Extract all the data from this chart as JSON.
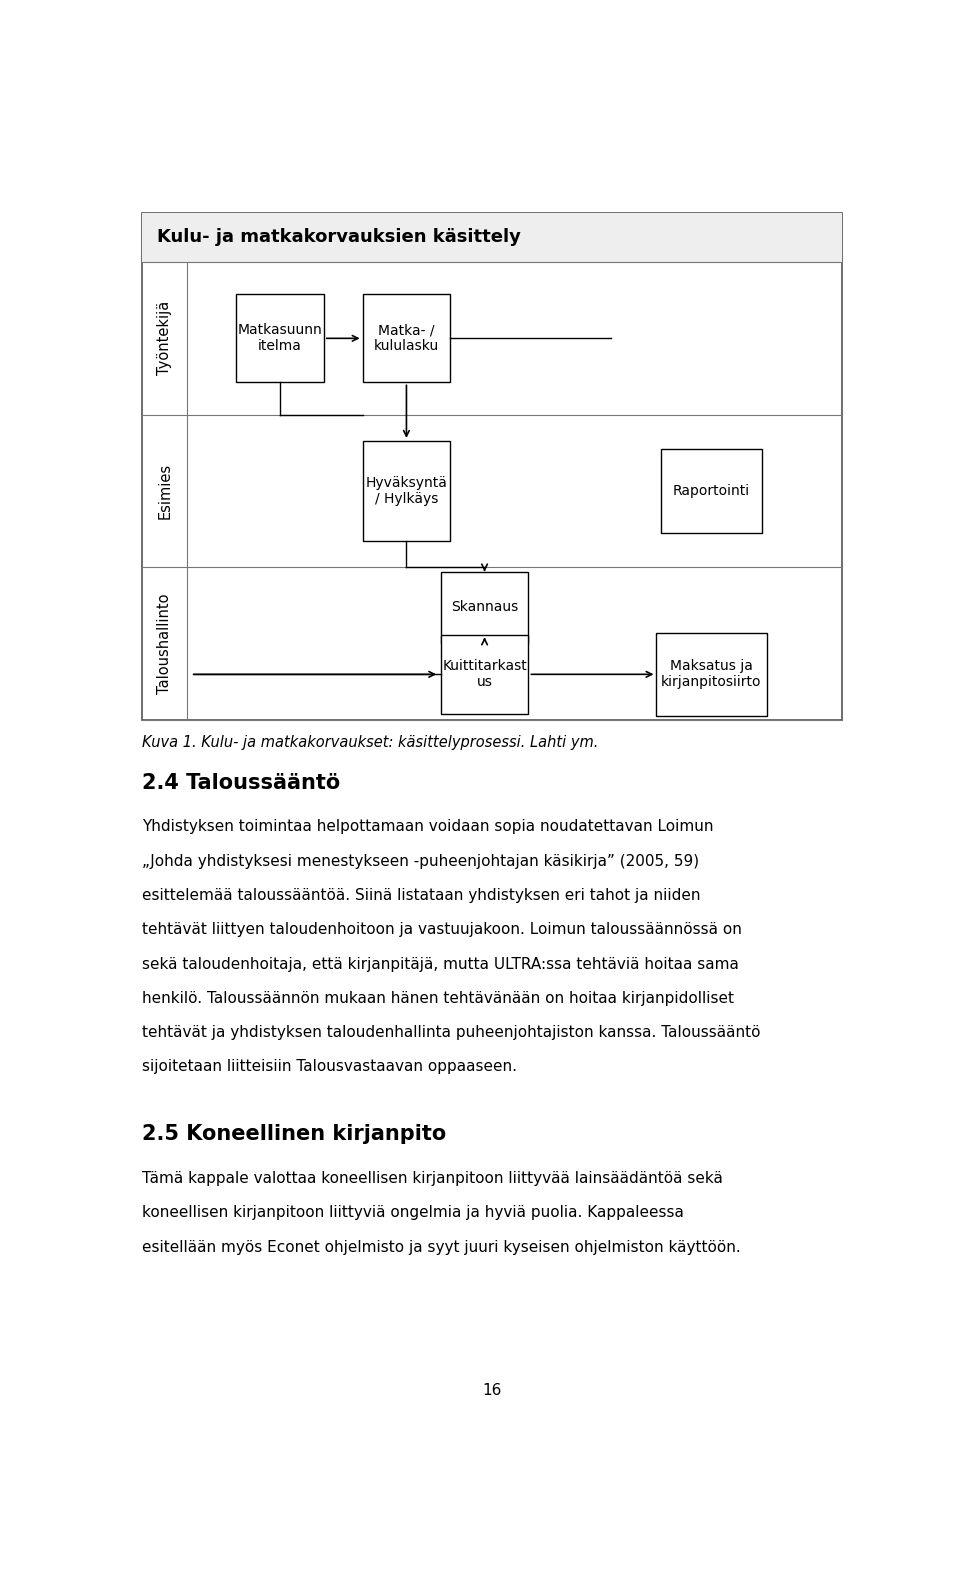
{
  "title": "Kulu- ja matkakorvauksien käsittely",
  "row_labels": [
    "Työntekijä",
    "Esimies",
    "Taloushallinto"
  ],
  "caption": "Kuva 1. Kulu- ja matkakorvaukset: käsittelyprosessi. Lahti ym.",
  "section_title": "2.4 Taloussääntö",
  "para1_lines": [
    "Yhdistyksen toimintaa helpottamaan voidaan sopia noudatettavan Loimun",
    "„Johda yhdistyksesi menestykseen -puheenjohtajan käsikirja” (2005, 59)",
    "esittelemää taloussääntöä. Siinä listataan yhdistyksen eri tahot ja niiden",
    "tehtävät liittyen taloudenhoitoon ja vastuujakoon. Loimun taloussäännössä on",
    "sekä taloudenhoitaja, että kirjanpitäjä, mutta ULTRA:ssa tehtäviä hoitaa sama",
    "henkilö. Taloussäännön mukaan hänen tehtävänään on hoitaa kirjanpidolliset",
    "tehtävät ja yhdistyksen taloudenhallinta puheenjohtajiston kanssa. Taloussääntö",
    "sijoitetaan liitteisiin Talousvastaavan oppaaseen."
  ],
  "section_title2": "2.5 Koneellinen kirjanpito",
  "para2_lines": [
    "Tämä kappale valottaa koneellisen kirjanpitoon liittyvää lainsäädäntöä sekä",
    "koneellisen kirjanpitoon liittyviä ongelmia ja hyviä puolia. Kappaleessa",
    "esitellään myös Econet ohjelmisto ja syyt juuri kyseisen ohjelmiston käyttöön."
  ],
  "page_number": "16",
  "bg_color": "#ffffff",
  "text_color": "#000000"
}
